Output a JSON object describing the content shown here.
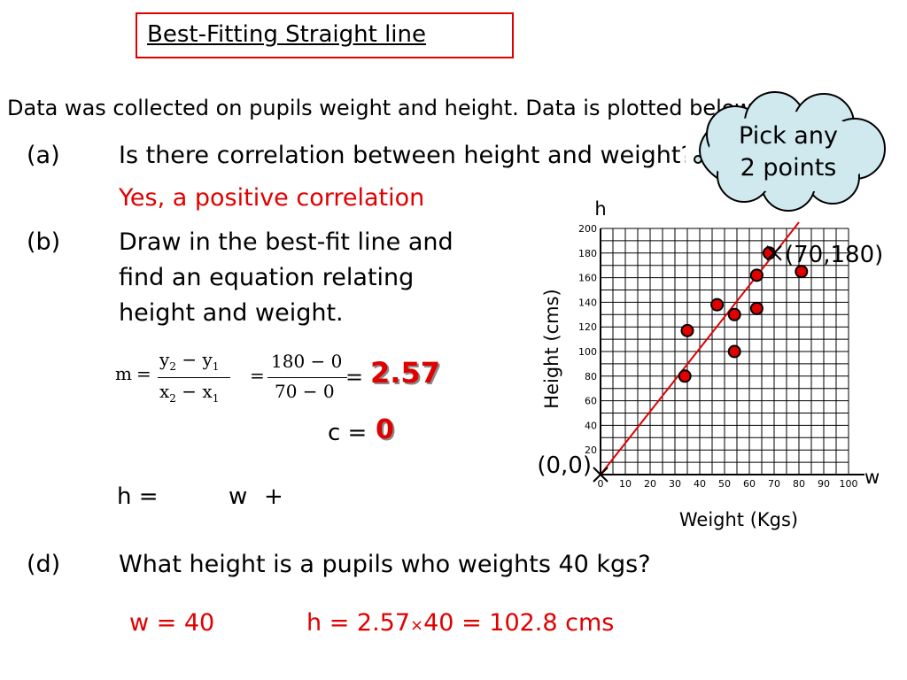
{
  "title": "Best-Fitting Straight line",
  "intro": "Data was collected on pupils weight and height. Data is plotted below.",
  "cloud": {
    "line1": "Pick any",
    "line2": "2  points"
  },
  "part_a": {
    "label": "(a)",
    "question": "Is there correlation between height and weight?",
    "answer": "Yes, a positive correlation"
  },
  "part_b": {
    "label": "(b)",
    "line1": "Draw in the best-fit line and",
    "line2": "find an equation relating",
    "line3": "height and weight."
  },
  "formula": {
    "m": "m",
    "eq": "=",
    "y2": "y",
    "y1": "y",
    "x2": "x",
    "x1": "x",
    "sub2": "2",
    "sub1": "1",
    "minus": "−",
    "num": "180 − 0",
    "den": "70 − 0",
    "m_value": "2.57"
  },
  "c_line": {
    "label": "c =",
    "value": "0"
  },
  "h_line": {
    "h": "h =",
    "w": "w",
    "plus": "+"
  },
  "part_d": {
    "label": "(d)",
    "question": "What height is a pupils who weights 40 kgs?",
    "w_answer": "w = 40",
    "h_answer_pre": "h = 2.57",
    "times": "×",
    "h_answer_post": "40 = 102.8 cms"
  },
  "chart_data": {
    "type": "scatter",
    "xlabel": "Weight (Kgs)",
    "ylabel": "Height (cms)",
    "x_axis_letter": "w",
    "y_axis_letter": "h",
    "xlim": [
      0,
      100
    ],
    "ylim": [
      0,
      200
    ],
    "x_ticks": [
      "0",
      "10",
      "20",
      "30",
      "40",
      "50",
      "60",
      "70",
      "80",
      "90",
      "100"
    ],
    "y_ticks": [
      "20",
      "40",
      "60",
      "80",
      "100",
      "120",
      "140",
      "160",
      "180",
      "200"
    ],
    "grid": true,
    "points": [
      {
        "x": 34,
        "y": 80
      },
      {
        "x": 35,
        "y": 117
      },
      {
        "x": 47,
        "y": 138
      },
      {
        "x": 54,
        "y": 100
      },
      {
        "x": 54,
        "y": 130
      },
      {
        "x": 63,
        "y": 135
      },
      {
        "x": 63,
        "y": 162
      },
      {
        "x": 68,
        "y": 180
      },
      {
        "x": 81,
        "y": 165
      }
    ],
    "marked_points": [
      {
        "x": 0,
        "y": 0,
        "label": "(0,0)"
      },
      {
        "x": 70,
        "y": 180,
        "label": "(70,180)"
      }
    ],
    "fit_line": {
      "from": [
        0,
        0
      ],
      "to": [
        80,
        205
      ],
      "color": "#e00000"
    },
    "point_color": "#e00000"
  }
}
